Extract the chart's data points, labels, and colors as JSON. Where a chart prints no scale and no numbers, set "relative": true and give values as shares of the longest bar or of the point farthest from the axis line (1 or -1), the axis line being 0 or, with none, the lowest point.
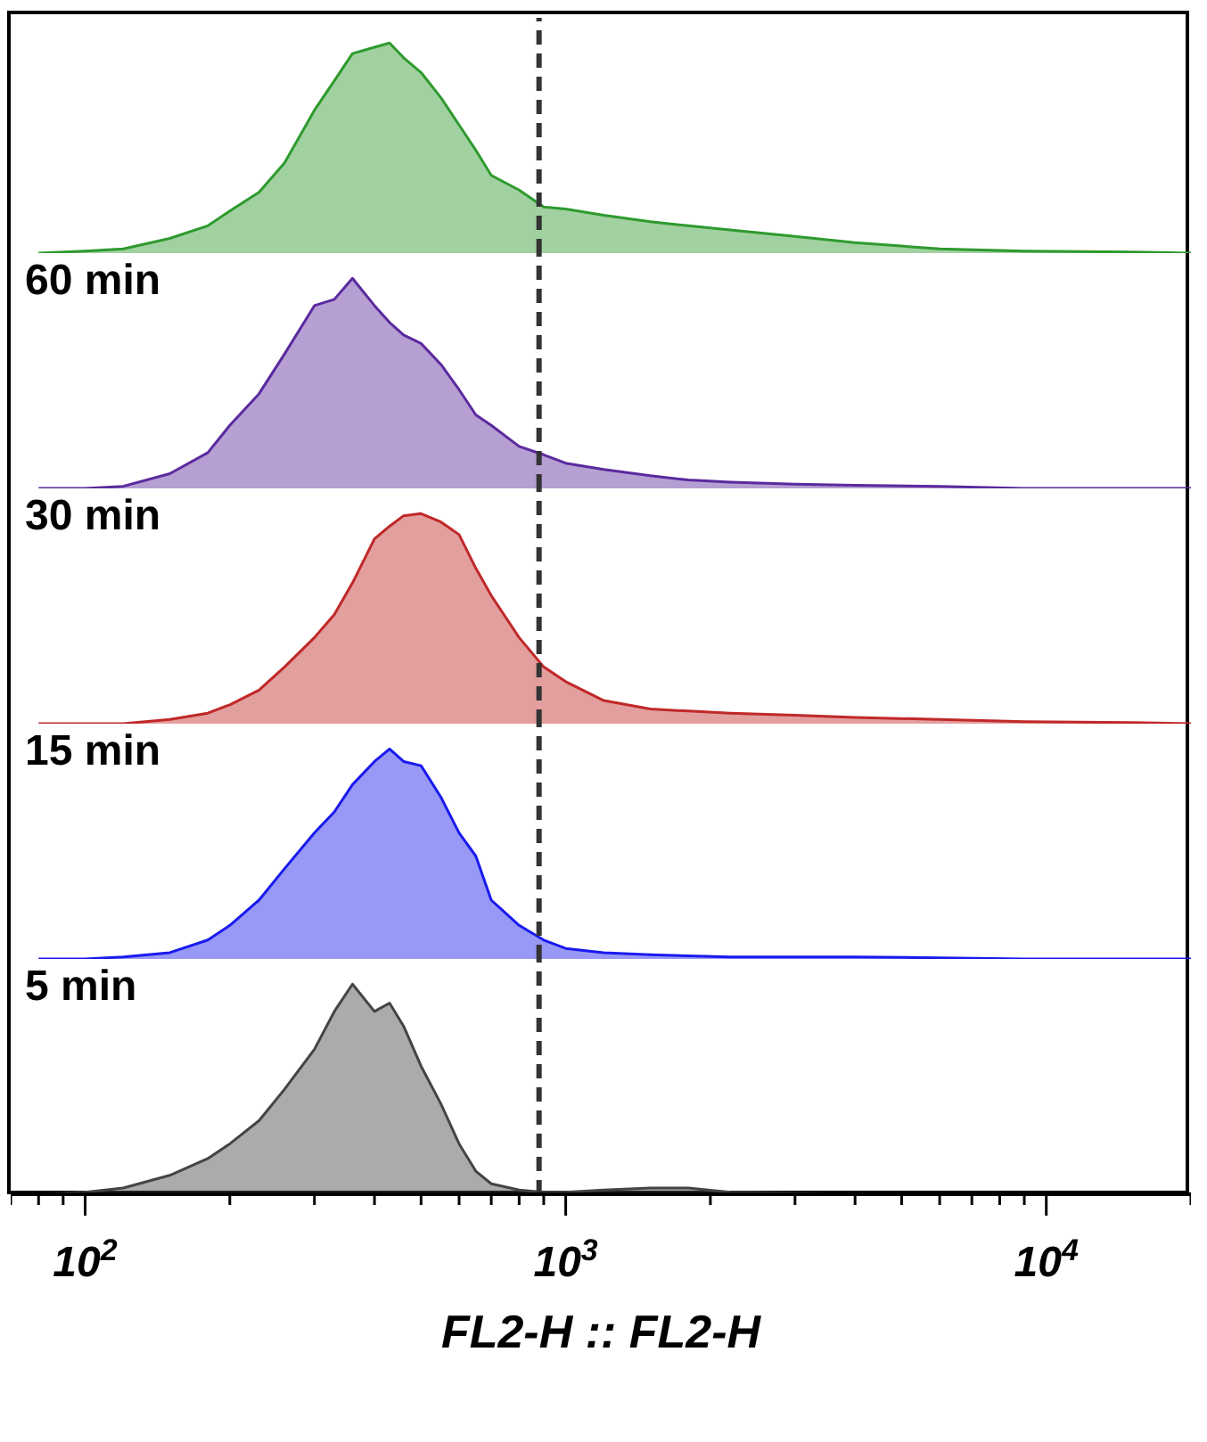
{
  "chart_data": [
    {
      "type": "area",
      "relative": true,
      "log": "x",
      "xlim": [
        70,
        20000
      ],
      "tick_labels": false,
      "line_style": "solid",
      "x": [
        80,
        100,
        120,
        150,
        180,
        200,
        230,
        260,
        300,
        330,
        360,
        400,
        430,
        460,
        500,
        550,
        600,
        650,
        700,
        800,
        900,
        1000,
        1200,
        1500,
        1800,
        2200,
        3000,
        4000,
        6000,
        9000,
        15000,
        20000
      ],
      "series": [
        {
          "color": "#2e9a2e",
          "values": [
            0,
            0.01,
            0.02,
            0.07,
            0.13,
            0.2,
            0.29,
            0.43,
            0.68,
            0.82,
            0.95,
            0.98,
            1,
            0.93,
            0.86,
            0.74,
            0.61,
            0.49,
            0.37,
            0.3,
            0.22,
            0.21,
            0.18,
            0.15,
            0.13,
            0.11,
            0.08,
            0.05,
            0.02,
            0.01,
            0.005,
            0
          ]
        }
      ],
      "ref_lines": [
        {
          "axis": "x",
          "value": 880,
          "color": "#333333",
          "line_style": "dashed"
        }
      ]
    },
    {
      "type": "area",
      "relative": true,
      "log": "x",
      "xlim": [
        70,
        20000
      ],
      "tick_labels": false,
      "line_style": "solid",
      "annotations": [
        "60 min"
      ],
      "x": [
        80,
        100,
        120,
        150,
        180,
        200,
        230,
        260,
        300,
        330,
        360,
        400,
        430,
        460,
        500,
        550,
        600,
        650,
        700,
        800,
        900,
        1000,
        1200,
        1500,
        1800,
        2200,
        3000,
        4000,
        6000,
        9000,
        15000,
        20000
      ],
      "series": [
        {
          "color": "#5b2a9e",
          "values": [
            0,
            0,
            0.01,
            0.07,
            0.17,
            0.3,
            0.45,
            0.64,
            0.87,
            0.9,
            1,
            0.87,
            0.79,
            0.73,
            0.69,
            0.59,
            0.47,
            0.35,
            0.3,
            0.2,
            0.16,
            0.12,
            0.09,
            0.06,
            0.04,
            0.03,
            0.02,
            0.015,
            0.01,
            0,
            0,
            0
          ]
        }
      ],
      "ref_lines": [
        {
          "axis": "x",
          "value": 880,
          "color": "#333333",
          "line_style": "dashed"
        }
      ]
    },
    {
      "type": "area",
      "relative": true,
      "log": "x",
      "xlim": [
        70,
        20000
      ],
      "tick_labels": false,
      "line_style": "solid",
      "annotations": [
        "30 min"
      ],
      "x": [
        80,
        100,
        120,
        150,
        180,
        200,
        230,
        260,
        300,
        330,
        360,
        400,
        430,
        460,
        500,
        550,
        600,
        650,
        700,
        800,
        900,
        1000,
        1200,
        1500,
        1800,
        2200,
        3000,
        4000,
        6000,
        9000,
        15000,
        20000
      ],
      "series": [
        {
          "color": "#c02828",
          "values": [
            0,
            0,
            0,
            0.02,
            0.05,
            0.09,
            0.16,
            0.27,
            0.41,
            0.52,
            0.67,
            0.88,
            0.94,
            0.99,
            1,
            0.96,
            0.9,
            0.74,
            0.61,
            0.41,
            0.27,
            0.2,
            0.11,
            0.07,
            0.06,
            0.05,
            0.04,
            0.03,
            0.02,
            0.01,
            0.005,
            0
          ]
        }
      ],
      "ref_lines": [
        {
          "axis": "x",
          "value": 880,
          "color": "#333333",
          "line_style": "dashed"
        }
      ]
    },
    {
      "type": "area",
      "relative": true,
      "log": "x",
      "xlim": [
        70,
        20000
      ],
      "tick_labels": false,
      "line_style": "solid",
      "annotations": [
        "15 min"
      ],
      "x": [
        80,
        100,
        120,
        150,
        180,
        200,
        230,
        260,
        300,
        330,
        360,
        400,
        430,
        460,
        500,
        550,
        600,
        650,
        700,
        800,
        900,
        1000,
        1200,
        1500,
        1800,
        2200,
        3000,
        4000,
        6000,
        9000,
        15000,
        20000
      ],
      "series": [
        {
          "color": "#1a1aee",
          "values": [
            0,
            0,
            0.01,
            0.03,
            0.09,
            0.16,
            0.28,
            0.43,
            0.6,
            0.7,
            0.83,
            0.94,
            1,
            0.94,
            0.92,
            0.77,
            0.6,
            0.49,
            0.28,
            0.16,
            0.09,
            0.05,
            0.03,
            0.02,
            0.015,
            0.01,
            0.01,
            0.01,
            0.005,
            0,
            0,
            0
          ]
        }
      ],
      "ref_lines": [
        {
          "axis": "x",
          "value": 880,
          "color": "#333333",
          "line_style": "dashed"
        }
      ]
    },
    {
      "type": "area",
      "relative": true,
      "log": "x",
      "xlim": [
        70,
        20000
      ],
      "tick_labels": "x",
      "line_style": "solid",
      "annotations": [
        "5 min"
      ],
      "xlabel": "FL2-H :: FL2-H",
      "xticks": [
        {
          "value": 70,
          "label": null
        },
        {
          "value": 80,
          "label": null
        },
        {
          "value": 90,
          "label": null
        },
        {
          "value": 100,
          "label": "10$^{2}$"
        },
        {
          "value": 200,
          "label": null
        },
        {
          "value": 300,
          "label": null
        },
        {
          "value": 400,
          "label": null
        },
        {
          "value": 500,
          "label": null
        },
        {
          "value": 600,
          "label": null
        },
        {
          "value": 700,
          "label": null
        },
        {
          "value": 800,
          "label": null
        },
        {
          "value": 900,
          "label": null
        },
        {
          "value": 1000,
          "label": "10$^{3}$"
        },
        {
          "value": 2000,
          "label": null
        },
        {
          "value": 3000,
          "label": null
        },
        {
          "value": 4000,
          "label": null
        },
        {
          "value": 5000,
          "label": null
        },
        {
          "value": 6000,
          "label": null
        },
        {
          "value": 7000,
          "label": null
        },
        {
          "value": 8000,
          "label": null
        },
        {
          "value": 9000,
          "label": null
        },
        {
          "value": 10000,
          "label": "10$^{4}$"
        },
        {
          "value": 20000,
          "label": null
        }
      ],
      "x": [
        80,
        100,
        120,
        150,
        180,
        200,
        230,
        260,
        300,
        330,
        360,
        400,
        430,
        460,
        500,
        550,
        600,
        650,
        700,
        800,
        900,
        1000,
        1200,
        1500,
        1800,
        2200,
        3000,
        4000,
        6000,
        9000,
        15000,
        20000
      ],
      "series": [
        {
          "color": "#444444",
          "values": [
            0,
            0.01,
            0.03,
            0.09,
            0.17,
            0.24,
            0.35,
            0.5,
            0.69,
            0.87,
            1,
            0.87,
            0.91,
            0.8,
            0.61,
            0.43,
            0.24,
            0.11,
            0.05,
            0.02,
            0.01,
            0.01,
            0.02,
            0.03,
            0.03,
            0.01,
            0.005,
            0,
            0,
            0,
            0,
            0
          ]
        }
      ],
      "ref_lines": [
        {
          "axis": "x",
          "value": 880,
          "color": "#333333",
          "line_style": "dashed"
        }
      ]
    }
  ]
}
